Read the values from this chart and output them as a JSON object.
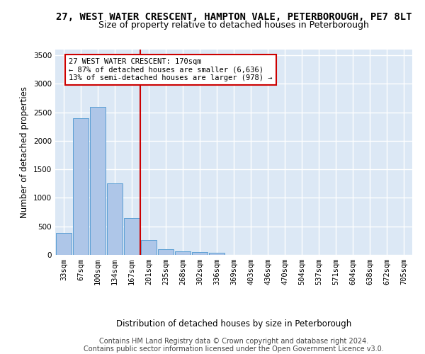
{
  "title_line1": "27, WEST WATER CRESCENT, HAMPTON VALE, PETERBOROUGH, PE7 8LT",
  "title_line2": "Size of property relative to detached houses in Peterborough",
  "xlabel": "Distribution of detached houses by size in Peterborough",
  "ylabel": "Number of detached properties",
  "categories": [
    "33sqm",
    "67sqm",
    "100sqm",
    "134sqm",
    "167sqm",
    "201sqm",
    "235sqm",
    "268sqm",
    "302sqm",
    "336sqm",
    "369sqm",
    "403sqm",
    "436sqm",
    "470sqm",
    "504sqm",
    "537sqm",
    "571sqm",
    "604sqm",
    "638sqm",
    "672sqm",
    "705sqm"
  ],
  "values": [
    390,
    2400,
    2600,
    1250,
    640,
    255,
    95,
    60,
    55,
    40,
    0,
    0,
    0,
    0,
    0,
    0,
    0,
    0,
    0,
    0,
    0
  ],
  "bar_color": "#aec6e8",
  "bar_edge_color": "#5a9fd4",
  "vline_pos": 4.5,
  "vline_color": "#cc0000",
  "annotation_text": "27 WEST WATER CRESCENT: 170sqm\n← 87% of detached houses are smaller (6,636)\n13% of semi-detached houses are larger (978) →",
  "annotation_box_color": "#ffffff",
  "annotation_box_edge": "#cc0000",
  "ylim": [
    0,
    3600
  ],
  "yticks": [
    0,
    500,
    1000,
    1500,
    2000,
    2500,
    3000,
    3500
  ],
  "background_color": "#dce8f5",
  "grid_color": "#ffffff",
  "footer_text": "Contains HM Land Registry data © Crown copyright and database right 2024.\nContains public sector information licensed under the Open Government Licence v3.0.",
  "title_fontsize": 10,
  "subtitle_fontsize": 9,
  "axis_label_fontsize": 8.5,
  "tick_fontsize": 7.5,
  "footer_fontsize": 7
}
